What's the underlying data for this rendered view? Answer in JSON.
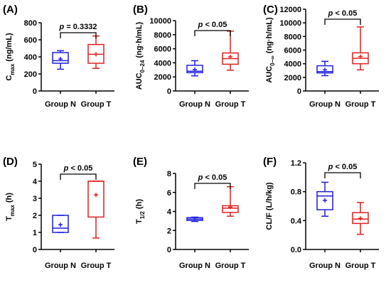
{
  "chart_data": [
    {
      "type": "box",
      "panel": "(A)",
      "ylabel": {
        "main": "C",
        "sub": "max",
        "rest": " (ng/mL)"
      },
      "ylim": [
        0,
        800
      ],
      "yticks": [
        0,
        200,
        400,
        600,
        800
      ],
      "yticklabels": [
        "0",
        "200",
        "400",
        "600",
        "800"
      ],
      "categories": [
        "Group N",
        "Group T"
      ],
      "boxes": [
        {
          "group": "Group N",
          "color": "#1f1fe0",
          "min": 255,
          "q1": 325,
          "median": 355,
          "q3": 450,
          "max": 472,
          "mean": 375
        },
        {
          "group": "Group T",
          "color": "#e02020",
          "min": 265,
          "q1": 325,
          "median": 430,
          "q3": 545,
          "max": 645,
          "mean": 430
        }
      ],
      "annotation": {
        "italic": "p",
        "text": " = 0.3332"
      }
    },
    {
      "type": "box",
      "panel": "(B)",
      "ylabel": {
        "main": "AUC",
        "sub": "0–24",
        "rest": " (ng·h/mL)"
      },
      "ylim": [
        0,
        10000
      ],
      "yticks": [
        0,
        2000,
        4000,
        6000,
        8000,
        10000
      ],
      "yticklabels": [
        "0",
        "2000",
        "4000",
        "6000",
        "8000",
        "10000"
      ],
      "categories": [
        "Group N",
        "Group T"
      ],
      "boxes": [
        {
          "group": "Group N",
          "color": "#1f1fe0",
          "min": 2150,
          "q1": 2600,
          "median": 2800,
          "q3": 3650,
          "max": 4300,
          "mean": 3050
        },
        {
          "group": "Group T",
          "color": "#e02020",
          "min": 2950,
          "q1": 3800,
          "median": 4600,
          "q3": 5400,
          "max": 8500,
          "mean": 4850
        }
      ],
      "annotation": {
        "italic": "p",
        "text": " < 0.05"
      }
    },
    {
      "type": "box",
      "panel": "(C)",
      "ylabel": {
        "main": "AUC",
        "sub": "0–∞",
        "rest": " (ng·h/mL)"
      },
      "ylim": [
        0,
        12000
      ],
      "yticks": [
        0,
        2000,
        4000,
        6000,
        8000,
        10000,
        12000
      ],
      "yticklabels": [
        "0",
        "2000",
        "4000",
        "6000",
        "8000",
        "10000",
        "12000"
      ],
      "categories": [
        "Group N",
        "Group T"
      ],
      "boxes": [
        {
          "group": "Group N",
          "color": "#1f1fe0",
          "min": 2250,
          "q1": 2650,
          "median": 2850,
          "q3": 3700,
          "max": 4350,
          "mean": 3100
        },
        {
          "group": "Group T",
          "color": "#e02020",
          "min": 3100,
          "q1": 4000,
          "median": 4800,
          "q3": 5600,
          "max": 9400,
          "mean": 5050
        }
      ],
      "annotation": {
        "italic": "p",
        "text": " < 0.05"
      }
    },
    {
      "type": "box",
      "panel": "(D)",
      "ylabel": {
        "main": "T",
        "sub": "max",
        "rest": " (h)"
      },
      "ylim": [
        0,
        5
      ],
      "yticks": [
        0,
        1,
        2,
        3,
        4,
        5
      ],
      "yticklabels": [
        "0",
        "1",
        "2",
        "3",
        "4",
        "5"
      ],
      "categories": [
        "Group N",
        "Group T"
      ],
      "boxes": [
        {
          "group": "Group N",
          "color": "#1f1fe0",
          "min": 1.0,
          "q1": 1.0,
          "median": 1.25,
          "q3": 2.0,
          "max": 2.0,
          "mean": 1.45
        },
        {
          "group": "Group T",
          "color": "#e02020",
          "min": 0.67,
          "q1": 1.9,
          "median": 4.0,
          "q3": 4.0,
          "max": 4.0,
          "mean": 3.2
        }
      ],
      "annotation": {
        "italic": "p",
        "text": " < 0.05"
      }
    },
    {
      "type": "box",
      "panel": "(E)",
      "ylabel": {
        "main": "T",
        "sub": "1/2",
        "rest": " (h)"
      },
      "ylim": [
        0,
        8
      ],
      "yticks": [
        0,
        2,
        4,
        6,
        8
      ],
      "yticklabels": [
        "0",
        "2",
        "4",
        "6",
        "8"
      ],
      "categories": [
        "Group N",
        "Group T"
      ],
      "boxes": [
        {
          "group": "Group N",
          "color": "#1f1fe0",
          "min": 2.95,
          "q1": 3.05,
          "median": 3.2,
          "q3": 3.35,
          "max": 3.4,
          "mean": 3.2
        },
        {
          "group": "Group T",
          "color": "#e02020",
          "min": 3.5,
          "q1": 3.9,
          "median": 4.35,
          "q3": 4.6,
          "max": 6.6,
          "mean": 4.45
        }
      ],
      "annotation": {
        "italic": "p",
        "text": " < 0.05"
      }
    },
    {
      "type": "box",
      "panel": "(F)",
      "ylabel": {
        "main": "CL/F (L/h/kg)",
        "sub": "",
        "rest": ""
      },
      "ylim": [
        0,
        1.2
      ],
      "yticks": [
        0,
        0.4,
        0.8,
        1.2
      ],
      "yticklabels": [
        "0.0",
        "0.4",
        "0.8",
        "1.2"
      ],
      "categories": [
        "Group N",
        "Group T"
      ],
      "boxes": [
        {
          "group": "Group N",
          "color": "#1f1fe0",
          "min": 0.46,
          "q1": 0.55,
          "median": 0.74,
          "q3": 0.8,
          "max": 0.93,
          "mean": 0.68
        },
        {
          "group": "Group T",
          "color": "#e02020",
          "min": 0.21,
          "q1": 0.36,
          "median": 0.42,
          "q3": 0.51,
          "max": 0.65,
          "mean": 0.43
        }
      ],
      "annotation": {
        "italic": "p",
        "text": " < 0.05"
      }
    }
  ]
}
